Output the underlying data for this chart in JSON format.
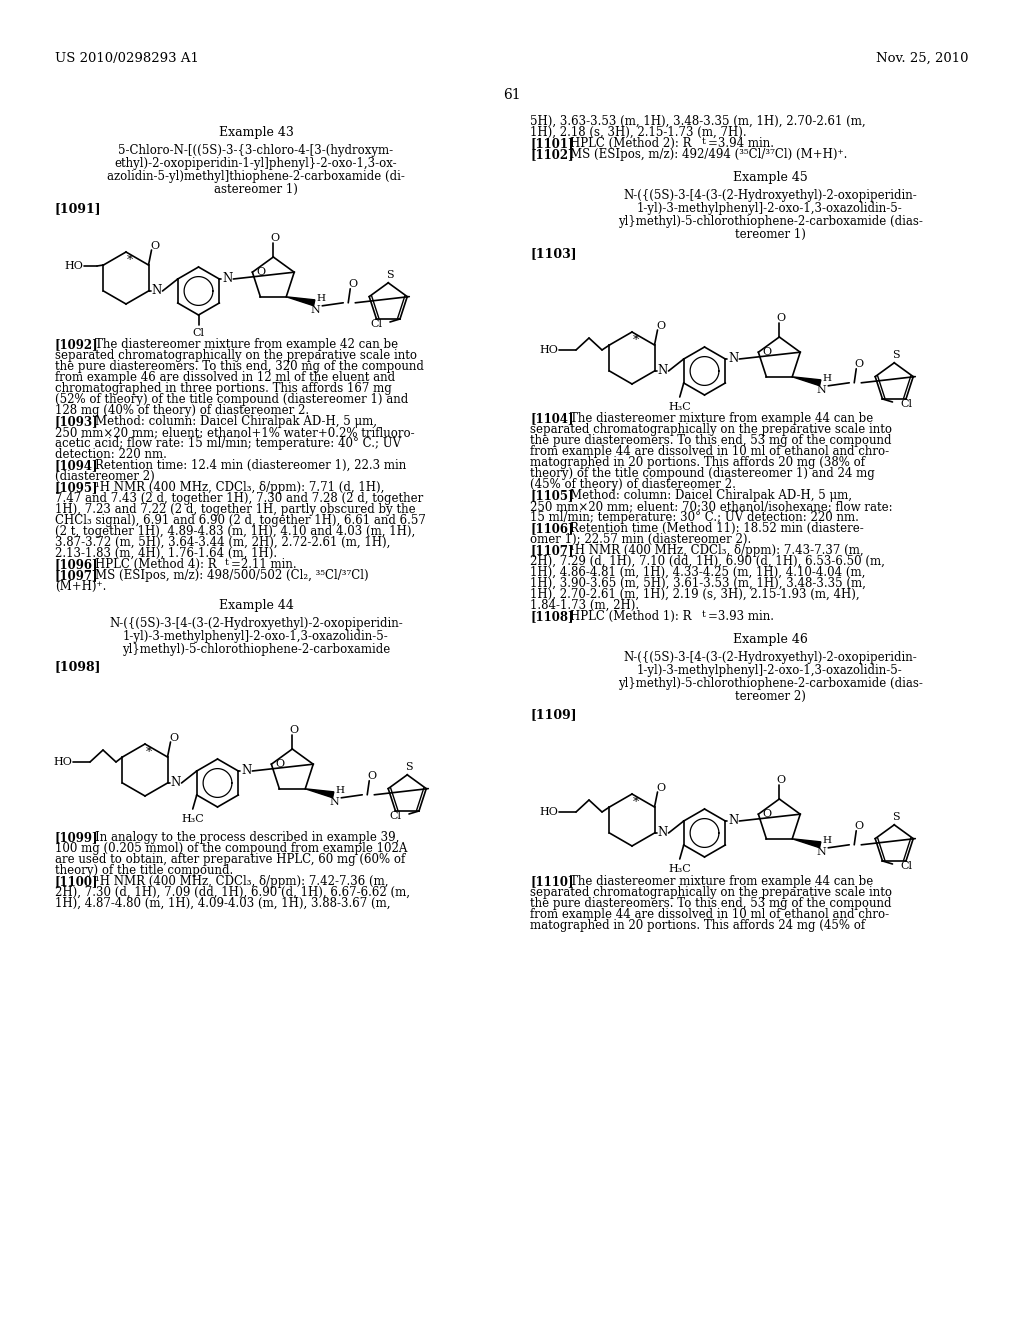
{
  "background_color": "#ffffff",
  "header_left": "US 2010/0298293 A1",
  "header_right": "Nov. 25, 2010",
  "page_number": "61"
}
